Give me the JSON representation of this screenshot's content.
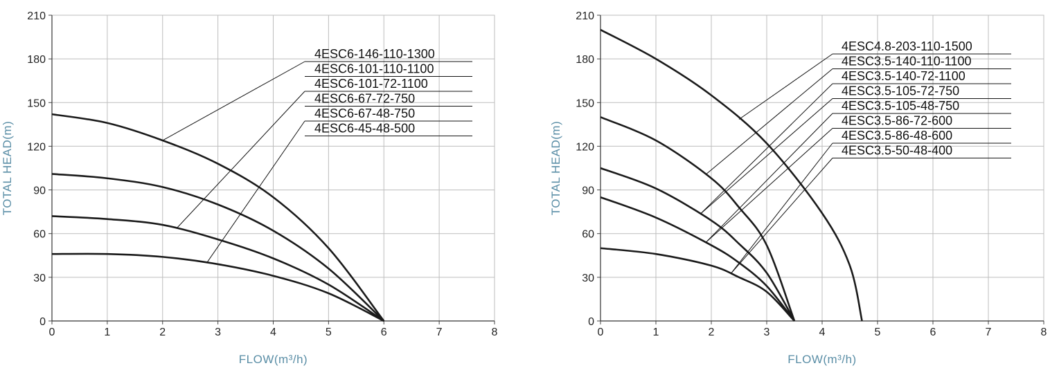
{
  "colors": {
    "curve": "#1a1a1a",
    "grid": "#bdbdbd",
    "axis_label": "#5a8ea6",
    "text": "#222222"
  },
  "chart_data": [
    {
      "type": "line",
      "title": "",
      "xlabel": "FLOW(m³/h)",
      "ylabel": "TOTAL HEAD(m)",
      "xlim": [
        0,
        8
      ],
      "ylim": [
        0,
        210
      ],
      "x_ticks": [
        "0",
        "1",
        "2",
        "3",
        "4",
        "5",
        "6",
        "7",
        "8"
      ],
      "y_ticks": [
        "0",
        "30",
        "60",
        "90",
        "120",
        "150",
        "180",
        "210"
      ],
      "grid": true,
      "legend_placement": "top-right",
      "series": [
        {
          "name": "4ESC6-146-110-1300",
          "points": [
            [
              0,
              142
            ],
            [
              1,
              136
            ],
            [
              2,
              124
            ],
            [
              3,
              108
            ],
            [
              4,
              85
            ],
            [
              5,
              50
            ],
            [
              6,
              0
            ]
          ],
          "leader_at": 2.0
        },
        {
          "name": "4ESC6-101-110-1100",
          "points": [
            [
              0,
              101
            ],
            [
              1,
              98
            ],
            [
              2,
              92
            ],
            [
              3,
              80
            ],
            [
              4,
              62
            ],
            [
              5,
              36
            ],
            [
              6,
              0
            ]
          ],
          "leader_at": 2.1
        },
        {
          "name": "4ESC6-101-72-1100",
          "points": [
            [
              0,
              72
            ],
            [
              1,
              70
            ],
            [
              2,
              66
            ],
            [
              3,
              56
            ],
            [
              4,
              43
            ],
            [
              5,
              25
            ],
            [
              6,
              0
            ]
          ],
          "leader_at": 2.25
        },
        {
          "name": "4ESC6-67-72-750",
          "points": [
            [
              0,
              72
            ],
            [
              1,
              70
            ],
            [
              2,
              66
            ],
            [
              3,
              56
            ],
            [
              4,
              43
            ],
            [
              5,
              25
            ],
            [
              6,
              0
            ]
          ],
          "leader_at": 2.25
        },
        {
          "name": "4ESC6-67-48-750",
          "points": [
            [
              0,
              46
            ],
            [
              1,
              46
            ],
            [
              2,
              44
            ],
            [
              3,
              39
            ],
            [
              4,
              31
            ],
            [
              5,
              19
            ],
            [
              6,
              0
            ]
          ],
          "leader_at": 2.8
        },
        {
          "name": "4ESC6-45-48-500",
          "points": [
            [
              0,
              46
            ],
            [
              1,
              46
            ],
            [
              2,
              44
            ],
            [
              3,
              39
            ],
            [
              4,
              31
            ],
            [
              5,
              19
            ],
            [
              6,
              0
            ]
          ],
          "leader_at": 2.8
        }
      ]
    },
    {
      "type": "line",
      "title": "",
      "xlabel": "FLOW(m³/h)",
      "ylabel": "TOTAL HEAD(m)",
      "xlim": [
        0,
        8
      ],
      "ylim": [
        0,
        210
      ],
      "x_ticks": [
        "0",
        "1",
        "2",
        "3",
        "4",
        "5",
        "6",
        "7",
        "8"
      ],
      "y_ticks": [
        "0",
        "30",
        "60",
        "90",
        "120",
        "150",
        "180",
        "210"
      ],
      "grid": true,
      "legend_placement": "top-right",
      "series": [
        {
          "name": "4ESC4.8-203-110-1500",
          "points": [
            [
              0,
              200
            ],
            [
              1,
              180
            ],
            [
              2,
              155
            ],
            [
              3,
              122
            ],
            [
              4,
              74
            ],
            [
              4.5,
              38
            ],
            [
              4.72,
              0
            ]
          ],
          "leader_at": 2.5
        },
        {
          "name": "4ESC3.5-140-110-1100",
          "points": [
            [
              0,
              140
            ],
            [
              1,
              124
            ],
            [
              2,
              98
            ],
            [
              2.5,
              78
            ],
            [
              3,
              52
            ],
            [
              3.5,
              0
            ]
          ],
          "leader_at": 1.9
        },
        {
          "name": "4ESC3.5-140-72-1100",
          "points": [
            [
              0,
              105
            ],
            [
              1,
              91
            ],
            [
              2,
              69
            ],
            [
              2.5,
              53
            ],
            [
              3,
              33
            ],
            [
              3.5,
              0
            ]
          ],
          "leader_at": 1.8
        },
        {
          "name": "4ESC3.5-105-72-750",
          "points": [
            [
              0,
              105
            ],
            [
              1,
              91
            ],
            [
              2,
              69
            ],
            [
              2.5,
              53
            ],
            [
              3,
              33
            ],
            [
              3.5,
              0
            ]
          ],
          "leader_at": 1.8
        },
        {
          "name": "4ESC3.5-105-48-750",
          "points": [
            [
              0,
              85
            ],
            [
              1,
              71
            ],
            [
              2,
              52
            ],
            [
              2.5,
              40
            ],
            [
              3,
              24
            ],
            [
              3.5,
              0
            ]
          ],
          "leader_at": 1.9
        },
        {
          "name": "4ESC3.5-86-72-600",
          "points": [
            [
              0,
              85
            ],
            [
              1,
              71
            ],
            [
              2,
              52
            ],
            [
              2.5,
              40
            ],
            [
              3,
              24
            ],
            [
              3.5,
              0
            ]
          ],
          "leader_at": 1.9
        },
        {
          "name": "4ESC3.5-86-48-600",
          "points": [
            [
              0,
              50
            ],
            [
              1,
              46
            ],
            [
              2,
              38
            ],
            [
              2.5,
              30
            ],
            [
              3,
              20
            ],
            [
              3.5,
              0
            ]
          ],
          "leader_at": 2.35
        },
        {
          "name": "4ESC3.5-50-48-400",
          "points": [
            [
              0,
              50
            ],
            [
              1,
              46
            ],
            [
              2,
              38
            ],
            [
              2.5,
              30
            ],
            [
              3,
              20
            ],
            [
              3.5,
              0
            ]
          ],
          "leader_at": 2.35
        }
      ]
    }
  ]
}
